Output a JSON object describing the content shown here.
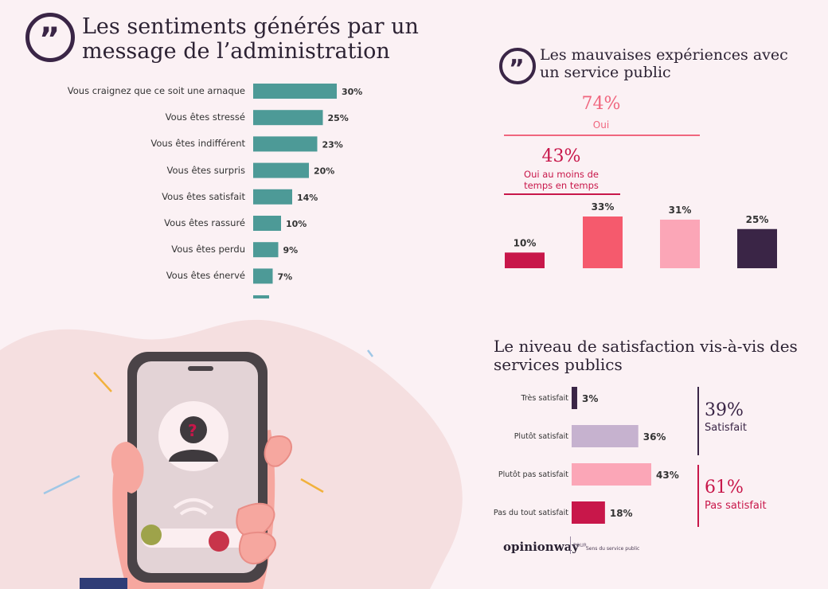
{
  "chart_data": [
    {
      "type": "bar",
      "orientation": "horizontal",
      "title": "Les sentiments générés par un message de l’administration",
      "categories": [
        "Vous craignez que ce soit une arnaque",
        "Vous êtes stressé",
        "Vous êtes indifférent",
        "Vous êtes surpris",
        "Vous êtes satisfait",
        "Vous êtes rassuré",
        "Vous êtes perdu",
        "Vous êtes énervé"
      ],
      "values": [
        30,
        25,
        23,
        20,
        14,
        10,
        9,
        7
      ],
      "value_labels": [
        "30%",
        "25%",
        "23%",
        "20%",
        "14%",
        "10%",
        "9%",
        "7%"
      ],
      "color": "#4d9a97",
      "xlim": [
        0,
        30
      ]
    },
    {
      "type": "bar",
      "title": "Les mauvaises expériences avec un service public",
      "values": [
        10,
        33,
        31,
        25
      ],
      "value_labels": [
        "10%",
        "33%",
        "31%",
        "25%"
      ],
      "colors": [
        "#c8174a",
        "#f55a6d",
        "#fba6b7",
        "#3a2546"
      ],
      "ylim": [
        0,
        33
      ],
      "brackets": [
        {
          "value": "74%",
          "label": "Oui"
        },
        {
          "value": "43%",
          "label": "Oui au moins de temps en temps"
        }
      ]
    },
    {
      "type": "bar",
      "orientation": "horizontal",
      "title": "Le niveau de satisfaction vis-à-vis des services publics",
      "categories": [
        "Très satisfait",
        "Plutôt satisfait",
        "Plutôt pas satisfait",
        "Pas du tout satisfait"
      ],
      "values": [
        3,
        36,
        43,
        18
      ],
      "value_labels": [
        "3%",
        "36%",
        "43%",
        "18%"
      ],
      "colors": [
        "#3a2546",
        "#c6b2cf",
        "#fba6b7",
        "#c8174a"
      ],
      "xlim": [
        0,
        43
      ],
      "groups": [
        {
          "value": "39%",
          "label": "Satisfait",
          "color": "#3a2546"
        },
        {
          "value": "61%",
          "label": "Pas satisfait",
          "color": "#c8174a"
        }
      ]
    }
  ],
  "footer": {
    "brand": "opinionway",
    "pour": "POUR",
    "partner": "Sens du service public"
  },
  "icons": {
    "quote": "quote-icon",
    "phone": "phone-icon",
    "person": "person-icon",
    "wifi": "signal-icon",
    "accept": "accept-call-icon",
    "decline": "decline-call-icon"
  }
}
